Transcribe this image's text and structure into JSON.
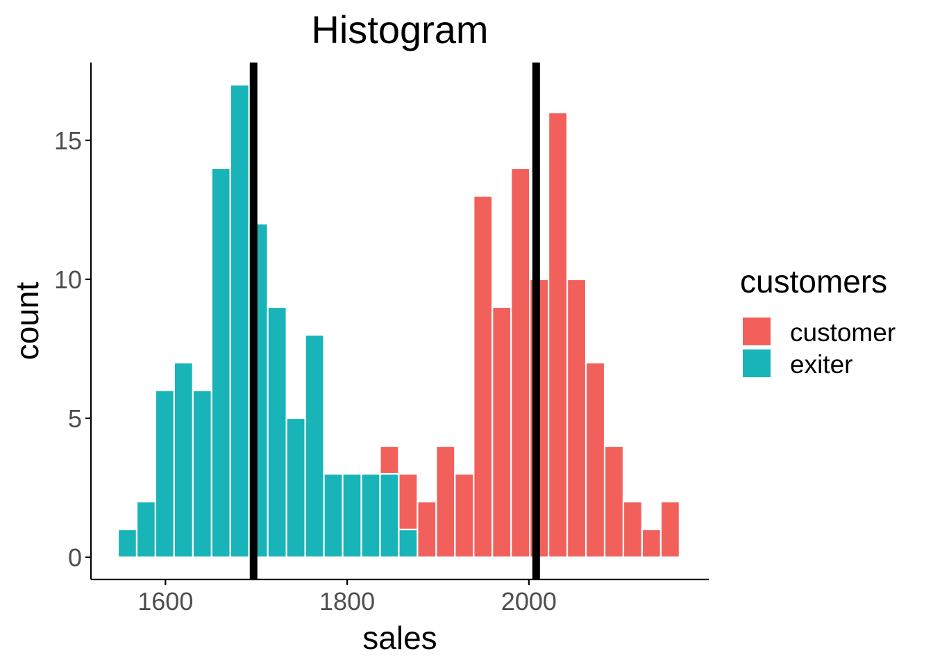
{
  "chart_data": {
    "type": "bar",
    "title": "Histogram",
    "xlabel": "sales",
    "ylabel": "count",
    "xlim": [
      1518,
      2198
    ],
    "ylim": [
      -0.8,
      17.8
    ],
    "xticks": [
      1600,
      1800,
      2000
    ],
    "yticks": [
      0,
      5,
      10,
      15
    ],
    "grid": false,
    "stacked": true,
    "bin_width": 20.6,
    "bin_starts": [
      1547.8,
      1568.4,
      1589.0,
      1609.6,
      1630.2,
      1650.8,
      1671.4,
      1692.0,
      1712.6,
      1733.2,
      1753.8,
      1774.4,
      1795.0,
      1815.6,
      1836.2,
      1856.8,
      1877.4,
      1898.0,
      1918.6,
      1939.2,
      1959.8,
      1980.4,
      2001.0,
      2021.6,
      2042.2,
      2062.8,
      2083.4,
      2104.0,
      2124.6,
      2145.2
    ],
    "legend": {
      "title": "customers",
      "position": "right"
    },
    "series": [
      {
        "name": "exiter",
        "color": "#18B4B8",
        "values": [
          1,
          2,
          6,
          7,
          6,
          14,
          17,
          12,
          9,
          5,
          8,
          3,
          3,
          3,
          3,
          1,
          0,
          0,
          0,
          0,
          0,
          0,
          0,
          0,
          0,
          0,
          0,
          0,
          0,
          0
        ]
      },
      {
        "name": "customer",
        "color": "#F2605C",
        "values": [
          0,
          0,
          0,
          0,
          0,
          0,
          0,
          0,
          0,
          0,
          0,
          0,
          0,
          0,
          1,
          2,
          2,
          4,
          3,
          13,
          9,
          14,
          10,
          16,
          10,
          7,
          4,
          2,
          1,
          2
        ]
      }
    ],
    "vertical_lines": [
      1697,
      2008
    ]
  }
}
